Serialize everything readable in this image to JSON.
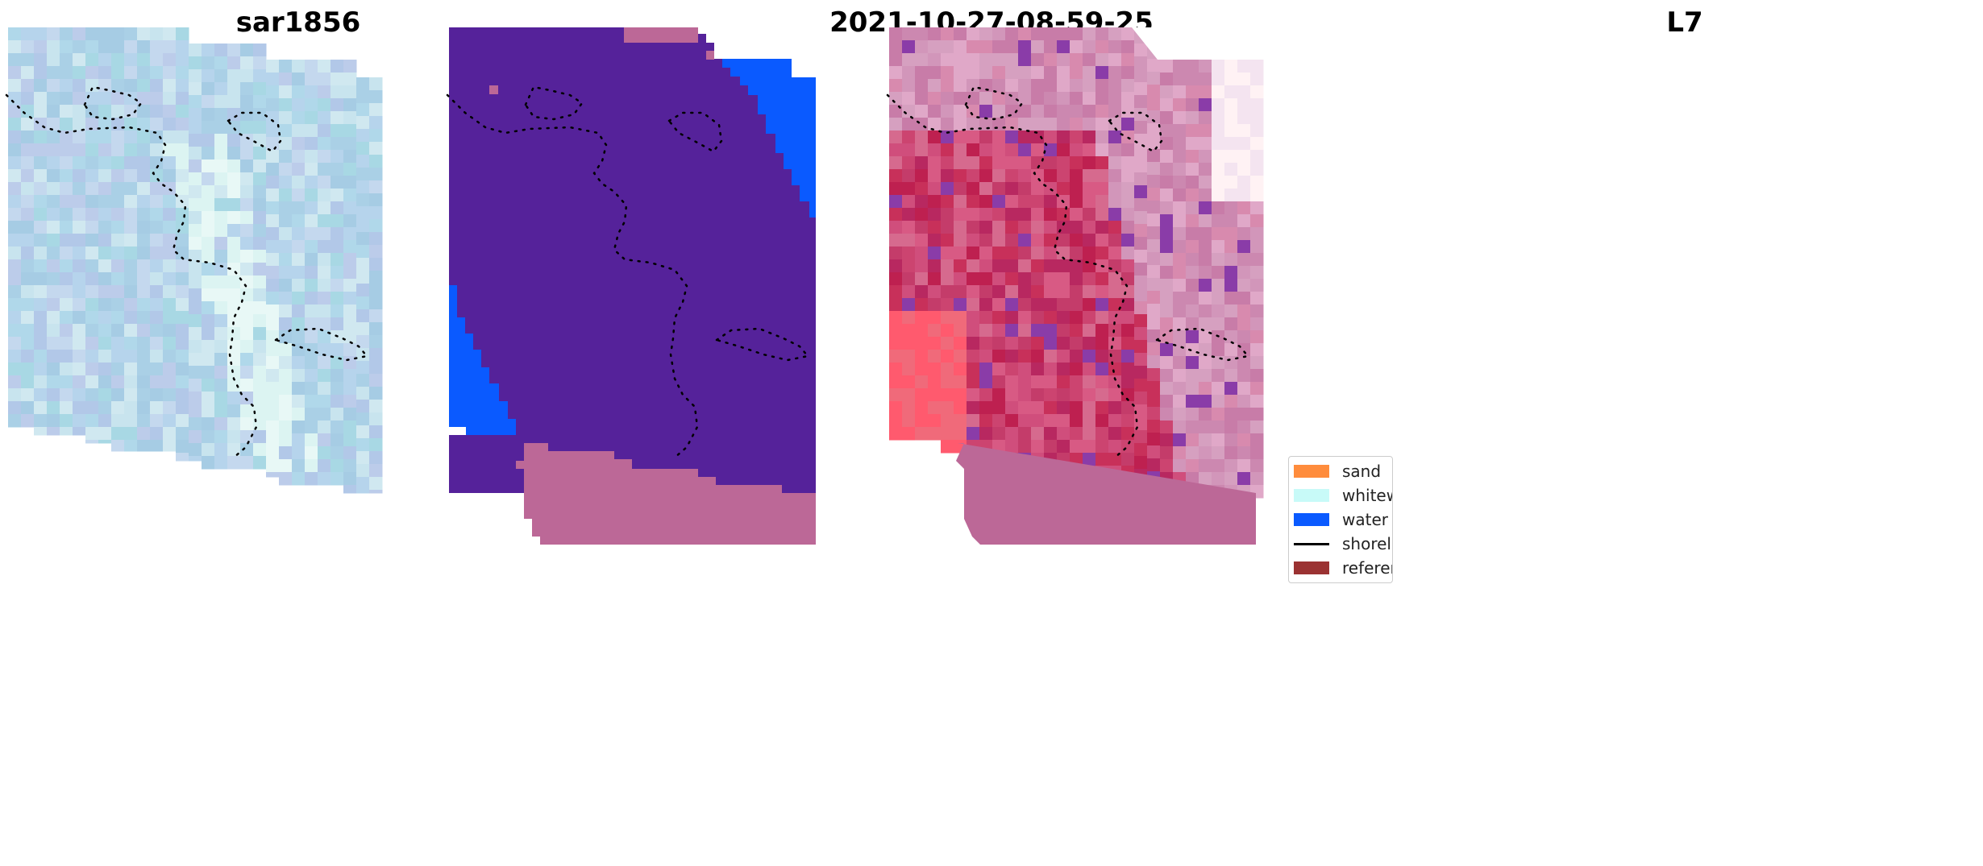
{
  "panels": [
    {
      "title": "sar1856"
    },
    {
      "title": "2021-10-27-08-59-25"
    },
    {
      "title": "L7"
    }
  ],
  "legend": {
    "items": [
      {
        "label": "sand",
        "color": "#FF8C3C",
        "kind": "patch"
      },
      {
        "label": "whitewater",
        "color": "#C8FAF8",
        "kind": "patch"
      },
      {
        "label": "water",
        "color": "#0A5AFF",
        "kind": "patch"
      },
      {
        "label": "shoreline",
        "color": "#000000",
        "kind": "line"
      },
      {
        "label": "reference",
        "color": "#9B3232",
        "kind": "patch"
      }
    ]
  },
  "colors": {
    "classified_background": "#55229A",
    "classified_water": "#0A5AFF",
    "nodata_mask": "#BC6897",
    "sar_base": "#AAD0E6",
    "l7_base": "#D04E7C"
  }
}
